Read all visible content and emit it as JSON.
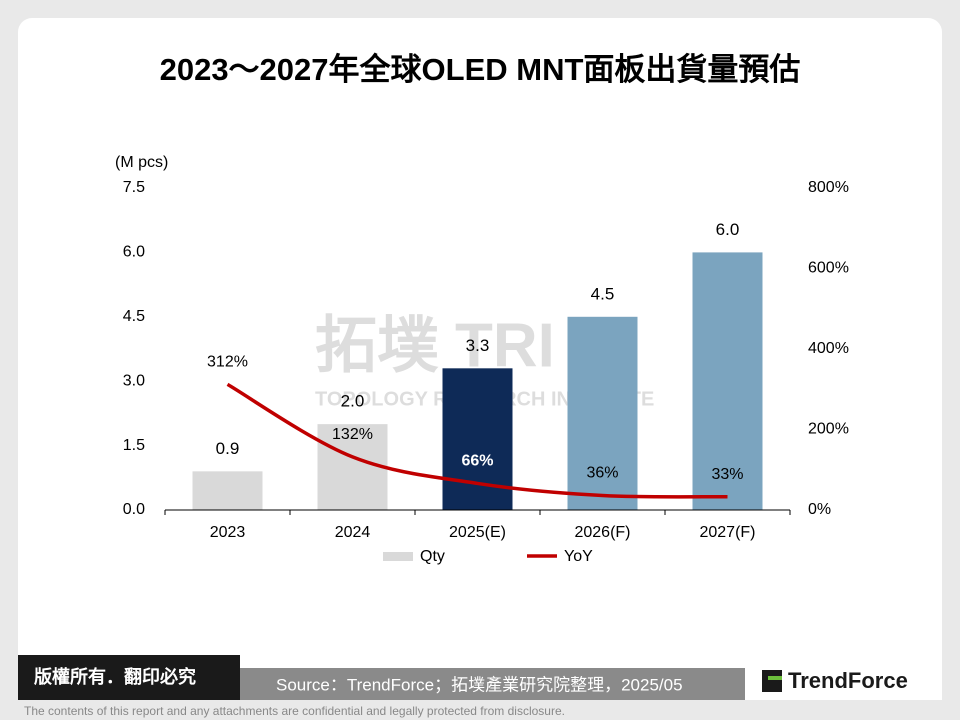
{
  "title": "2023～2027年全球OLED MNT面板出貨量預估",
  "chart_data": {
    "type": "bar-line",
    "y_label": "(M pcs)",
    "categories": [
      "2023",
      "2024",
      "2025(E)",
      "2026(F)",
      "2027(F)"
    ],
    "series": [
      {
        "name": "Qty",
        "type": "bar",
        "color": "#d9d9d9",
        "colors": [
          "#d9d9d9",
          "#d9d9d9",
          "#0e2a57",
          "#7ba4bf",
          "#7ba4bf"
        ],
        "values": [
          0.9,
          2.0,
          3.3,
          4.5,
          6.0
        ],
        "value_labels": [
          "0.9",
          "2.0",
          "3.3",
          "4.5",
          "6.0"
        ]
      },
      {
        "name": "YoY",
        "type": "line",
        "axis": "y2",
        "color": "#c00000",
        "values": [
          312,
          132,
          66,
          36,
          33
        ],
        "value_labels": [
          "312%",
          "132%",
          "66%",
          "36%",
          "33%"
        ]
      }
    ],
    "ylim": [
      0,
      7.5
    ],
    "yticks": [
      {
        "value": 0,
        "label": "0.0"
      },
      1.5,
      {
        "value": 3,
        "label": "3.0"
      },
      4.5,
      {
        "value": 6,
        "label": "6.0"
      },
      7.5
    ],
    "y2lim": [
      0,
      800
    ],
    "y2ticks": [
      {
        "value": 0,
        "label": "0%"
      },
      {
        "value": 200,
        "label": "200%"
      },
      {
        "value": 400,
        "label": "400%"
      },
      {
        "value": 600,
        "label": "600%"
      },
      {
        "value": 800,
        "label": "800%"
      }
    ],
    "legend": "bottom"
  },
  "watermark": {
    "logo": "拓墣",
    "mark": "TRI",
    "name": "TOPOLOGY RESEARCH INSTITUTE"
  },
  "footer": {
    "copyright": "版權所有．翻印必究",
    "source": "Source：TrendForce；拓墣產業研究院整理，2025/05",
    "brand": "TrendForce",
    "disclaimer": "The contents of this report and any attachments are confidential and legally protected from disclosure."
  }
}
